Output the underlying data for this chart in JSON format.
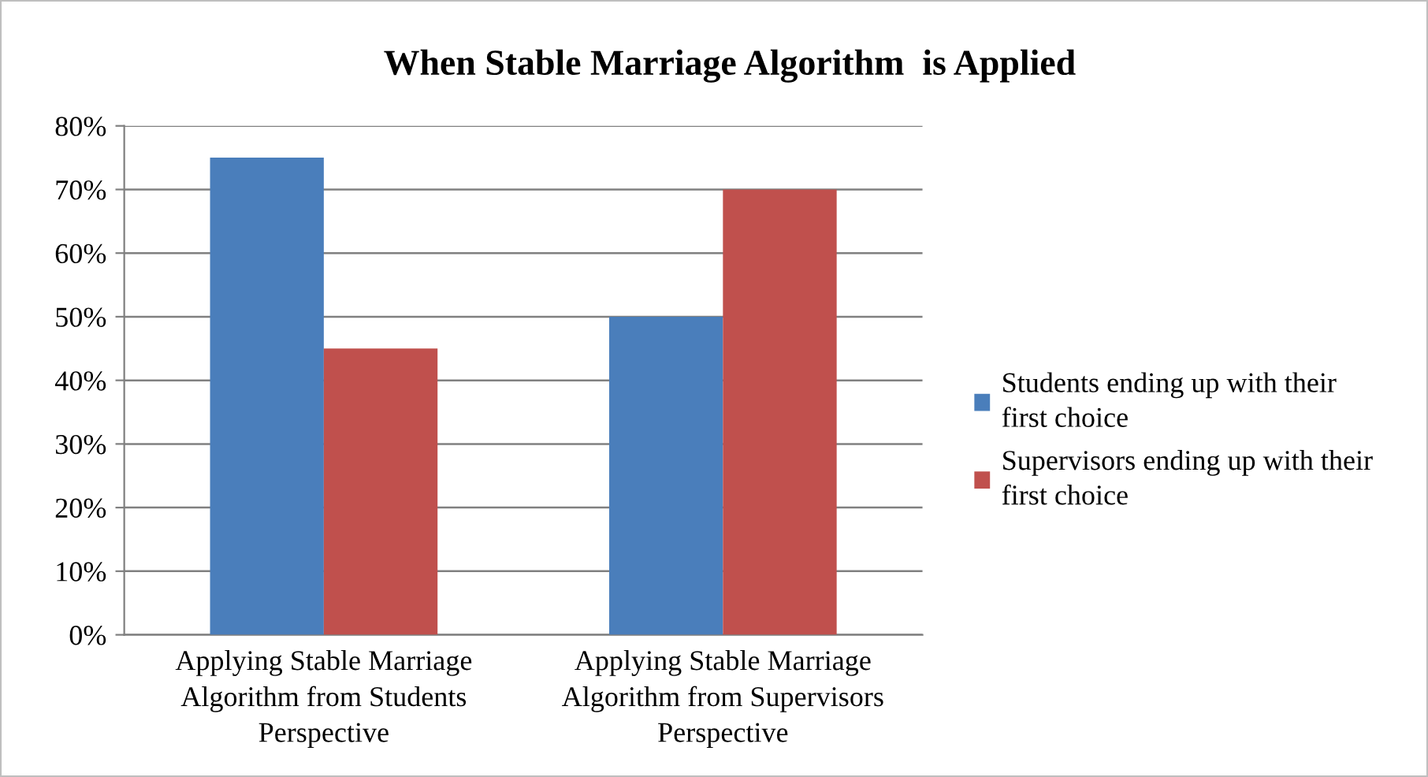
{
  "chart_data": {
    "type": "bar",
    "title": "When Stable Marriage Algorithm  is Applied",
    "categories": [
      "Applying Stable Marriage\nAlgorithm from Students\nPerspective",
      "Applying Stable Marriage\nAlgorithm from Supervisors\nPerspective"
    ],
    "series": [
      {
        "name": "Students ending up with their\nfirst choice",
        "color": "#4a7ebb",
        "values": [
          75,
          50
        ]
      },
      {
        "name": "Supervisors ending up with their\nfirst choice",
        "color": "#c0504d",
        "values": [
          45,
          70
        ]
      }
    ],
    "ylim": [
      0,
      80
    ],
    "yticks": [
      {
        "value": 0,
        "label": "0%"
      },
      {
        "value": 10,
        "label": "10%"
      },
      {
        "value": 20,
        "label": "20%"
      },
      {
        "value": 30,
        "label": "30%"
      },
      {
        "value": 40,
        "label": "40%"
      },
      {
        "value": 50,
        "label": "50%"
      },
      {
        "value": 60,
        "label": "60%"
      },
      {
        "value": 70,
        "label": "70%"
      },
      {
        "value": 80,
        "label": "80%"
      }
    ],
    "grid": "y",
    "legend": "right"
  }
}
